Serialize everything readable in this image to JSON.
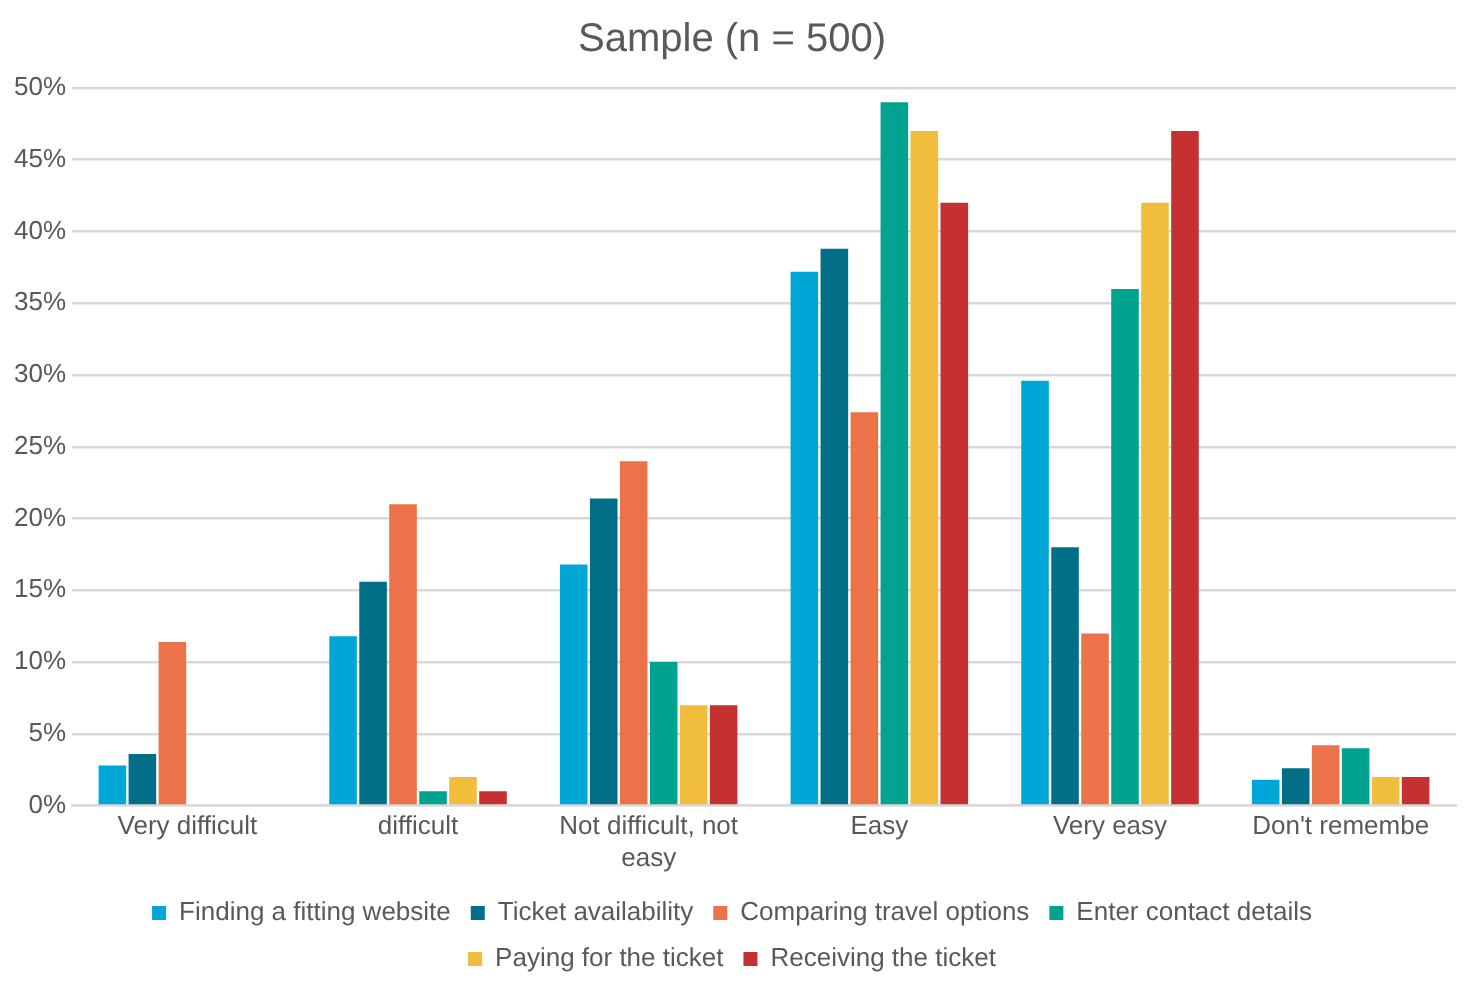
{
  "chart_data": {
    "type": "bar",
    "title": "Sample (n = 500)",
    "categories": [
      "Very difficult",
      "difficult",
      "Not difficult, not easy",
      "Easy",
      "Very easy",
      "Don't remembe"
    ],
    "series": [
      {
        "name": "Finding a fitting website",
        "color": "#00a6d6",
        "values": [
          2.8,
          11.8,
          16.8,
          37.2,
          29.6,
          1.8
        ]
      },
      {
        "name": "Ticket availability",
        "color": "#006f87",
        "values": [
          3.6,
          15.6,
          21.4,
          38.8,
          18,
          2.6
        ]
      },
      {
        "name": "Comparing travel options",
        "color": "#ec724a",
        "values": [
          11.4,
          21,
          24,
          27.4,
          12,
          4.2
        ]
      },
      {
        "name": "Enter contact details",
        "color": "#00a38f",
        "values": [
          0,
          1,
          10,
          49,
          36,
          4
        ]
      },
      {
        "name": "Paying for the ticket",
        "color": "#f1bd3d",
        "values": [
          0,
          2,
          7,
          47,
          42,
          2
        ]
      },
      {
        "name": "Receiving the ticket",
        "color": "#c43130",
        "values": [
          0,
          1,
          7,
          42,
          47,
          2
        ]
      }
    ],
    "ylim": [
      0,
      50
    ],
    "yticks": [
      {
        "value": 0,
        "label": "0%"
      },
      {
        "value": 5,
        "label": "5%"
      },
      {
        "value": 10,
        "label": "10%"
      },
      {
        "value": 15,
        "label": "15%"
      },
      {
        "value": 20,
        "label": "20%"
      },
      {
        "value": 25,
        "label": "25%"
      },
      {
        "value": 30,
        "label": "30%"
      },
      {
        "value": 35,
        "label": "35%"
      },
      {
        "value": 40,
        "label": "40%"
      },
      {
        "value": 45,
        "label": "45%"
      },
      {
        "value": 50,
        "label": "50%"
      }
    ],
    "grid": "y",
    "legend": "bottom"
  }
}
